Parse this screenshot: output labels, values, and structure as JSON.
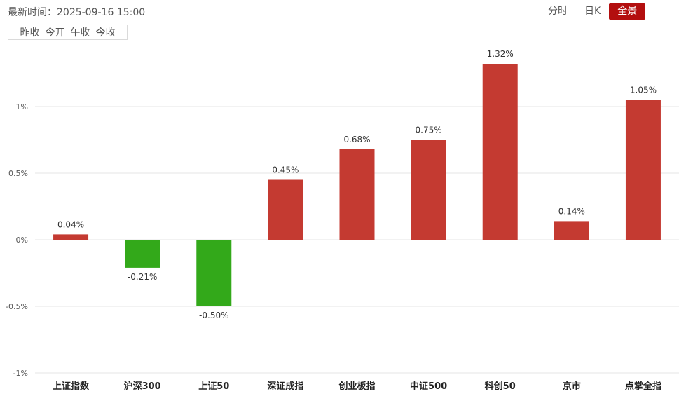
{
  "header": {
    "time_label": "最新时间：2025-09-16 15:00"
  },
  "view_tabs": [
    {
      "label": "分时",
      "active": false
    },
    {
      "label": "日K",
      "active": false
    },
    {
      "label": "全景",
      "active": true
    }
  ],
  "period_buttons": [
    {
      "label": "昨收"
    },
    {
      "label": "今开"
    },
    {
      "label": "午收"
    },
    {
      "label": "今收"
    }
  ],
  "colors": {
    "up": "#c43a31",
    "down": "#33a91a",
    "grid": "#e6e6e6"
  },
  "chart_data": {
    "type": "bar",
    "categories": [
      "上证指数",
      "沪深300",
      "上证50",
      "深证成指",
      "创业板指",
      "中证500",
      "科创50",
      "京市",
      "点掌全指"
    ],
    "values": [
      0.04,
      -0.21,
      -0.5,
      0.45,
      0.68,
      0.75,
      1.32,
      0.14,
      1.05
    ],
    "value_labels": [
      "0.04%",
      "-0.21%",
      "-0.50%",
      "0.45%",
      "0.68%",
      "0.75%",
      "1.32%",
      "0.14%",
      "1.05%"
    ],
    "y_ticks": [
      1,
      0.5,
      0,
      -0.5,
      -1
    ],
    "y_tick_labels": [
      "1%",
      "0.5%",
      "0%",
      "-0.5%",
      "-1%"
    ],
    "ylim": [
      -1,
      1.32
    ],
    "grid": true,
    "legend": "none"
  }
}
